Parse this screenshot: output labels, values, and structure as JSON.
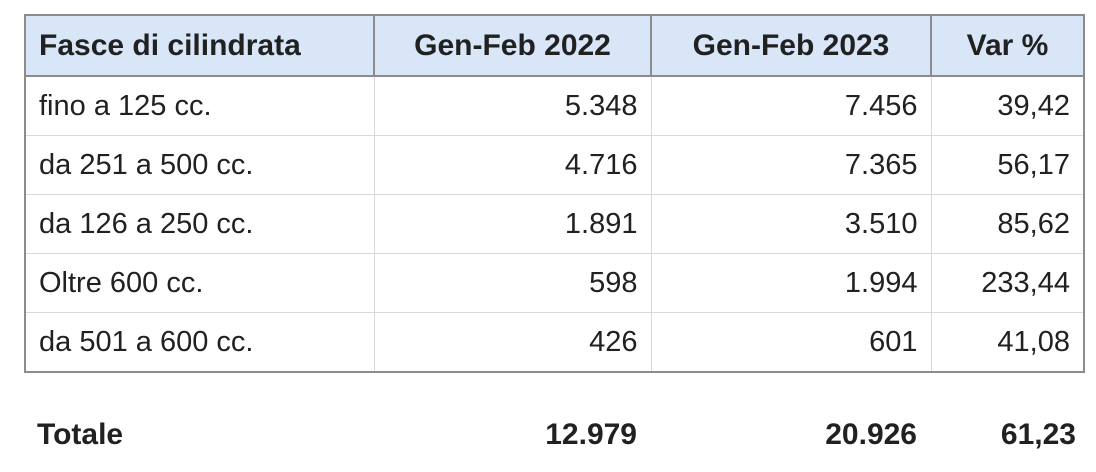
{
  "chart_data": {
    "type": "table",
    "title": "",
    "columns": [
      "Fasce di cilindrata",
      "Gen-Feb 2022",
      "Gen-Feb 2023",
      "Var %"
    ],
    "rows": [
      [
        "fino a 125 cc.",
        "5.348",
        "7.456",
        "39,42"
      ],
      [
        "da 251 a 500 cc.",
        "4.716",
        "7.365",
        "56,17"
      ],
      [
        "da 126 a 250 cc.",
        "1.891",
        "3.510",
        "85,62"
      ],
      [
        "Oltre 600 cc.",
        "598",
        "1.994",
        "233,44"
      ],
      [
        "da 501 a 600 cc.",
        "426",
        "601",
        "41,08"
      ]
    ],
    "total": [
      "Totale",
      "12.979",
      "20.926",
      "61,23"
    ],
    "layout": {
      "grid": "on",
      "header_position": "top",
      "value_alignment": "right"
    }
  },
  "colors": {
    "header_bg": "#d8e6f7",
    "outer_border": "#8c8c8c",
    "inner_border": "#d9d9d9",
    "text": "#212121",
    "page_bg": "#ffffff"
  }
}
